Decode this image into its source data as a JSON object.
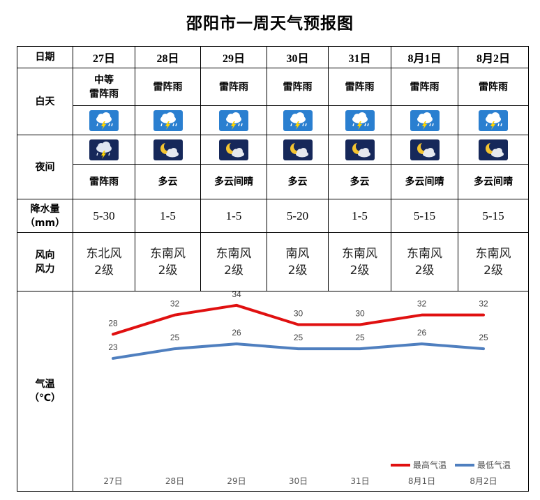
{
  "title": "邵阳市一周天气预报图",
  "labels": {
    "date": "日期",
    "day": "白天",
    "night": "夜间",
    "precip_line1": "降水量",
    "precip_line2": "（mm）",
    "wind_line1": "风向",
    "wind_line2": "风力",
    "temp_line1": "气温",
    "temp_line2": "（℃）"
  },
  "days": [
    {
      "date": "27日",
      "day_weather_l1": "中等",
      "day_weather_l2": "雷阵雨",
      "day_icon": "thunderstorm-icon",
      "night_icon": "night-thunderstorm-icon",
      "night_weather": "雷阵雨",
      "precip": "5-30",
      "wind_dir": "东北风",
      "wind_force": "2级"
    },
    {
      "date": "28日",
      "day_weather_l1": "",
      "day_weather_l2": "雷阵雨",
      "day_icon": "thunderstorm-icon",
      "night_icon": "moon-cloud-icon",
      "night_weather": "多云",
      "precip": "1-5",
      "wind_dir": "东南风",
      "wind_force": "2级"
    },
    {
      "date": "29日",
      "day_weather_l1": "",
      "day_weather_l2": "雷阵雨",
      "day_icon": "thunderstorm-icon",
      "night_icon": "moon-cloud-icon",
      "night_weather": "多云间晴",
      "precip": "1-5",
      "wind_dir": "东南风",
      "wind_force": "2级"
    },
    {
      "date": "30日",
      "day_weather_l1": "",
      "day_weather_l2": "雷阵雨",
      "day_icon": "thunderstorm-icon",
      "night_icon": "moon-cloud-icon",
      "night_weather": "多云",
      "precip": "5-20",
      "wind_dir": "南风",
      "wind_force": "2级"
    },
    {
      "date": "31日",
      "day_weather_l1": "",
      "day_weather_l2": "雷阵雨",
      "day_icon": "thunderstorm-icon",
      "night_icon": "moon-cloud-icon",
      "night_weather": "多云",
      "precip": "1-5",
      "wind_dir": "东南风",
      "wind_force": "2级"
    },
    {
      "date": "8月1日",
      "day_weather_l1": "",
      "day_weather_l2": "雷阵雨",
      "day_icon": "thunderstorm-icon",
      "night_icon": "moon-cloud-icon",
      "night_weather": "多云间晴",
      "precip": "5-15",
      "wind_dir": "东南风",
      "wind_force": "2级"
    },
    {
      "date": "8月2日",
      "day_weather_l1": "",
      "day_weather_l2": "雷阵雨",
      "day_icon": "thunderstorm-icon",
      "night_icon": "moon-cloud-icon",
      "night_weather": "多云间晴",
      "precip": "5-15",
      "wind_dir": "东南风",
      "wind_force": "2级"
    }
  ],
  "colors": {
    "high_line": "#e01010",
    "low_line": "#4f7fbf",
    "icon_day_bg": "#2a7fd0",
    "icon_night_bg": "#16285a",
    "moon": "#f4c430"
  },
  "chart_data": {
    "type": "line",
    "categories": [
      "27日",
      "28日",
      "29日",
      "30日",
      "31日",
      "8月1日",
      "8月2日"
    ],
    "series": [
      {
        "name": "最高气温",
        "values": [
          28,
          32,
          34,
          30,
          30,
          32,
          32
        ],
        "color": "#e01010"
      },
      {
        "name": "最低气温",
        "values": [
          23,
          25,
          26,
          25,
          25,
          26,
          25
        ],
        "color": "#4f7fbf"
      }
    ],
    "ylim": [
      0,
      36
    ],
    "grid": false,
    "legend": "bottom-right",
    "data_labels": true
  }
}
